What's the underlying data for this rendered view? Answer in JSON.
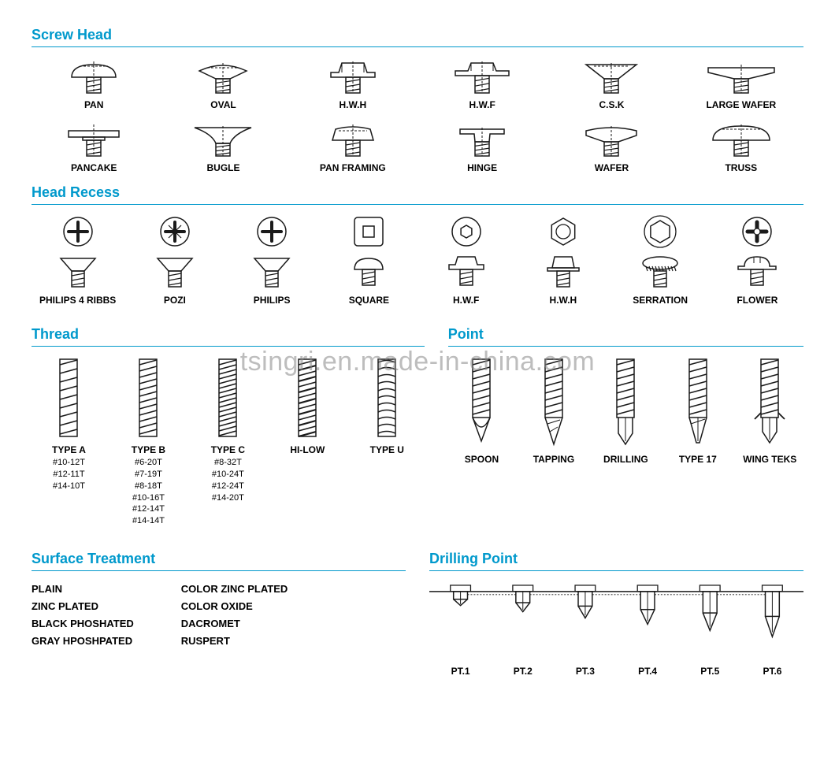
{
  "watermark": "tsingri.en.made-in-china.com",
  "colors": {
    "heading": "#0099cc",
    "stroke": "#1a1a1a",
    "hiddenline": "#1a1a1a"
  },
  "sections": {
    "screw_head": {
      "title": "Screw Head",
      "row1": [
        {
          "label": "PAN",
          "shape": "pan"
        },
        {
          "label": "OVAL",
          "shape": "oval"
        },
        {
          "label": "H.W.H",
          "shape": "hwh"
        },
        {
          "label": "H.W.F",
          "shape": "hwf"
        },
        {
          "label": "C.S.K",
          "shape": "csk"
        },
        {
          "label": "LARGE WAFER",
          "shape": "large_wafer"
        }
      ],
      "row2": [
        {
          "label": "PANCAKE",
          "shape": "pancake"
        },
        {
          "label": "BUGLE",
          "shape": "bugle"
        },
        {
          "label": "PAN FRAMING",
          "shape": "pan_framing"
        },
        {
          "label": "HINGE",
          "shape": "hinge"
        },
        {
          "label": "WAFER",
          "shape": "wafer"
        },
        {
          "label": "TRUSS",
          "shape": "truss"
        }
      ]
    },
    "head_recess": {
      "title": "Head Recess",
      "items": [
        {
          "label": "PHILIPS 4 RIBBS",
          "top": "cross4",
          "bottom": "csk"
        },
        {
          "label": "POZI",
          "top": "pozi",
          "bottom": "csk"
        },
        {
          "label": "PHILIPS",
          "top": "cross",
          "bottom": "csk"
        },
        {
          "label": "SQUARE",
          "top": "square",
          "bottom": "pan"
        },
        {
          "label": "H.W.F",
          "top": "hexsocket",
          "bottom": "hexflange"
        },
        {
          "label": "H.W.H",
          "top": "hexhead",
          "bottom": "hex"
        },
        {
          "label": "SERRATION",
          "top": "hexflangetop",
          "bottom": "serration"
        },
        {
          "label": "FLOWER",
          "top": "flower",
          "bottom": "flangepan"
        }
      ]
    },
    "thread": {
      "title": "Thread",
      "items": [
        {
          "label": "TYPE A",
          "specs": [
            "#10-12T",
            "#12-11T",
            "#14-10T"
          ],
          "thread": "coarse"
        },
        {
          "label": "TYPE B",
          "specs": [
            "#6-20T",
            "#7-19T",
            "#8-18T",
            "#10-16T",
            "#12-14T",
            "#14-14T"
          ],
          "thread": "med"
        },
        {
          "label": "TYPE C",
          "specs": [
            "#8-32T",
            "#10-24T",
            "#12-24T",
            "#14-20T"
          ],
          "thread": "fine"
        },
        {
          "label": "HI-LOW",
          "specs": [],
          "thread": "hilow"
        },
        {
          "label": "TYPE U",
          "specs": [],
          "thread": "u"
        }
      ]
    },
    "point": {
      "title": "Point",
      "items": [
        {
          "label": "SPOON",
          "tip": "spoon"
        },
        {
          "label": "TAPPING",
          "tip": "tapping"
        },
        {
          "label": "DRILLING",
          "tip": "drilling"
        },
        {
          "label": "TYPE 17",
          "tip": "t17"
        },
        {
          "label": "WING TEKS",
          "tip": "wing"
        }
      ]
    },
    "surface_treatment": {
      "title": "Surface Treatment",
      "col1": [
        "PLAIN",
        "ZINC PLATED",
        "BLACK PHOSHATED",
        "GRAY HPOSHPATED"
      ],
      "col2": [
        "COLOR ZINC PLATED",
        "COLOR OXIDE",
        "DACROMET",
        "RUSPERT"
      ]
    },
    "drilling_point": {
      "title": "Drilling Point",
      "items": [
        "PT.1",
        "PT.2",
        "PT.3",
        "PT.4",
        "PT.5",
        "PT.6"
      ],
      "depths": [
        18,
        26,
        34,
        42,
        50,
        58
      ]
    }
  }
}
